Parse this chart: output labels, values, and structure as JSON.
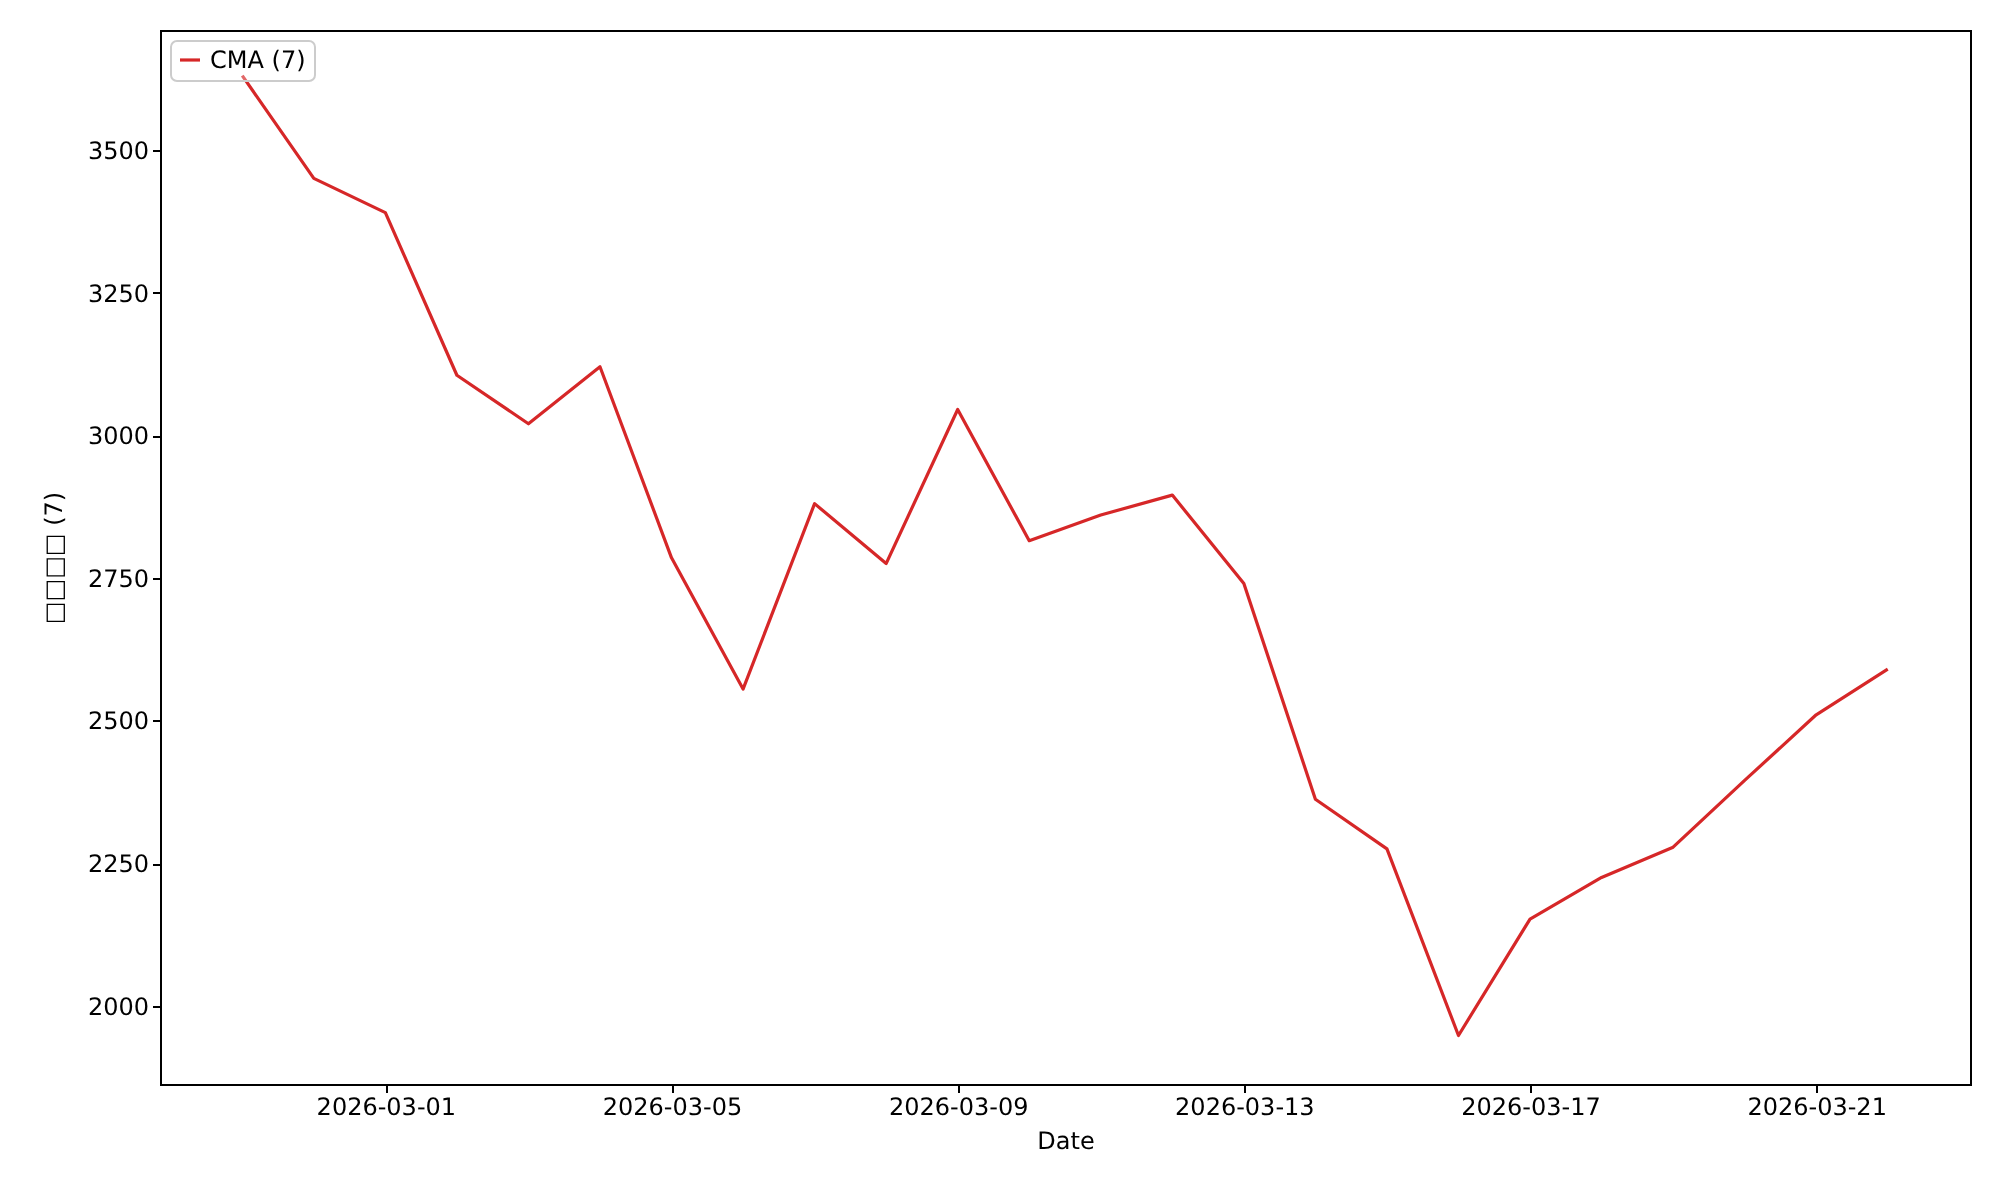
{
  "chart_data": {
    "type": "line",
    "xlabel": "Date",
    "ylabel": "□□□□ (7)",
    "x": [
      "2026-02-27",
      "2026-02-28",
      "2026-03-01",
      "2026-03-02",
      "2026-03-03",
      "2026-03-04",
      "2026-03-05",
      "2026-03-06",
      "2026-03-07",
      "2026-03-08",
      "2026-03-09",
      "2026-03-10",
      "2026-03-11",
      "2026-03-12",
      "2026-03-13",
      "2026-03-14",
      "2026-03-15",
      "2026-03-16",
      "2026-03-17",
      "2026-03-18",
      "2026-03-19",
      "2026-03-20",
      "2026-03-21",
      "2026-03-22"
    ],
    "series": [
      {
        "name": "CMA (7)",
        "color": "#d62728",
        "values": [
          3630,
          3450,
          3390,
          3105,
          3020,
          3120,
          2785,
          2555,
          2880,
          2775,
          3045,
          2815,
          2860,
          2895,
          2740,
          2362,
          2275,
          1948,
          2152,
          2225,
          2278,
          2395,
          2510,
          2590
        ]
      }
    ],
    "xlim": [
      "2026-02-25T20:24",
      "2026-03-23T03:36"
    ],
    "xticks": [
      {
        "value": "2026-03-01",
        "label": "2026-03-01"
      },
      {
        "value": "2026-03-05",
        "label": "2026-03-05"
      },
      {
        "value": "2026-03-09",
        "label": "2026-03-09"
      },
      {
        "value": "2026-03-13",
        "label": "2026-03-13"
      },
      {
        "value": "2026-03-17",
        "label": "2026-03-17"
      },
      {
        "value": "2026-03-21",
        "label": "2026-03-21"
      }
    ],
    "ylim": [
      1863,
      3710
    ],
    "yticks": [
      2000,
      2250,
      2500,
      2750,
      3000,
      3250,
      3500
    ],
    "grid": false,
    "legend": "top left",
    "line_style": "solid",
    "marker": "none"
  }
}
